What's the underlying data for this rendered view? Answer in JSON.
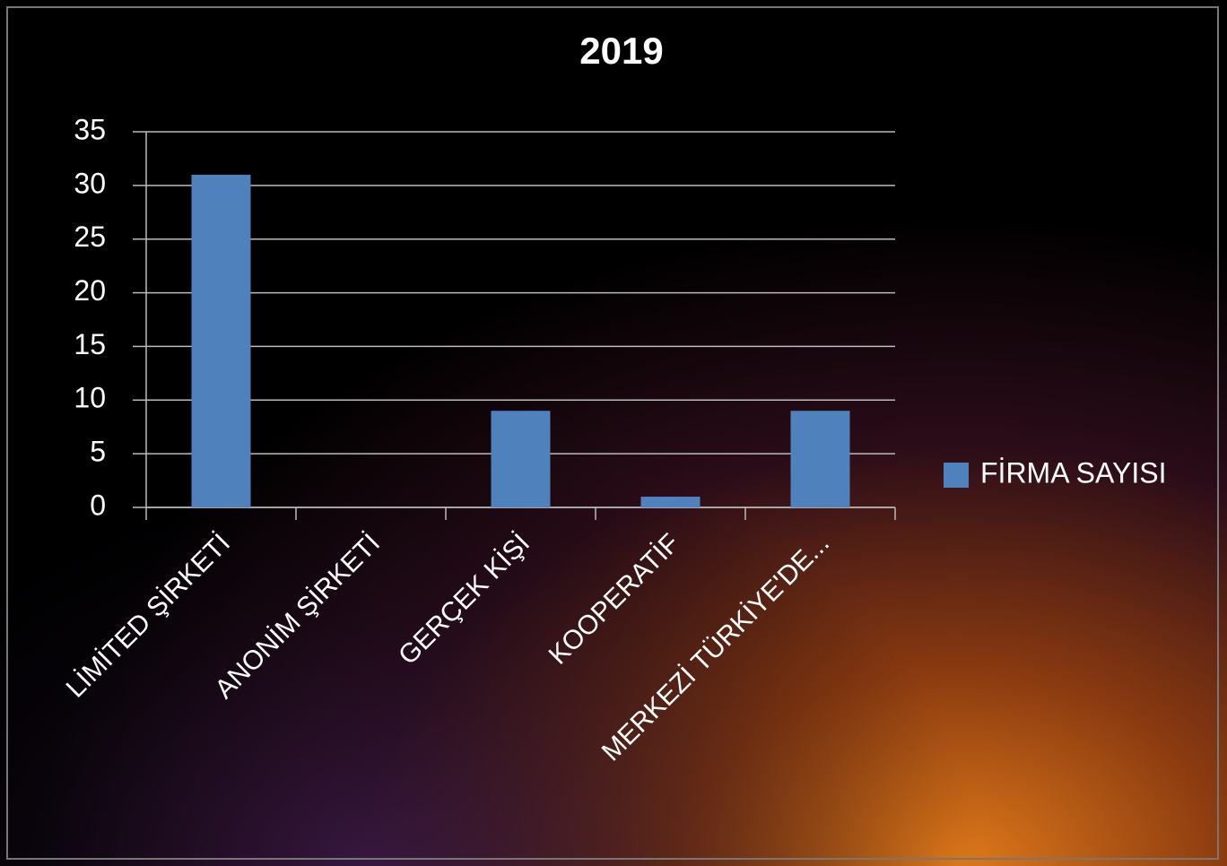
{
  "chart_data": {
    "type": "bar",
    "title": "2019",
    "categories": [
      "LİMİTED ŞİRKETİ",
      "ANONİM ŞİRKETİ",
      "GERÇEK KİŞİ",
      "KOOPERATİF",
      "MERKEZİ TÜRKİYE'DE..."
    ],
    "series": [
      {
        "name": "FİRMA SAYISI",
        "color": "#4f81bd",
        "values": [
          31,
          0,
          9,
          1,
          9
        ]
      }
    ],
    "ylim": [
      0,
      35
    ],
    "yticks": [
      0,
      5,
      10,
      15,
      20,
      25,
      30,
      35
    ],
    "grid": true,
    "legend": "right"
  }
}
